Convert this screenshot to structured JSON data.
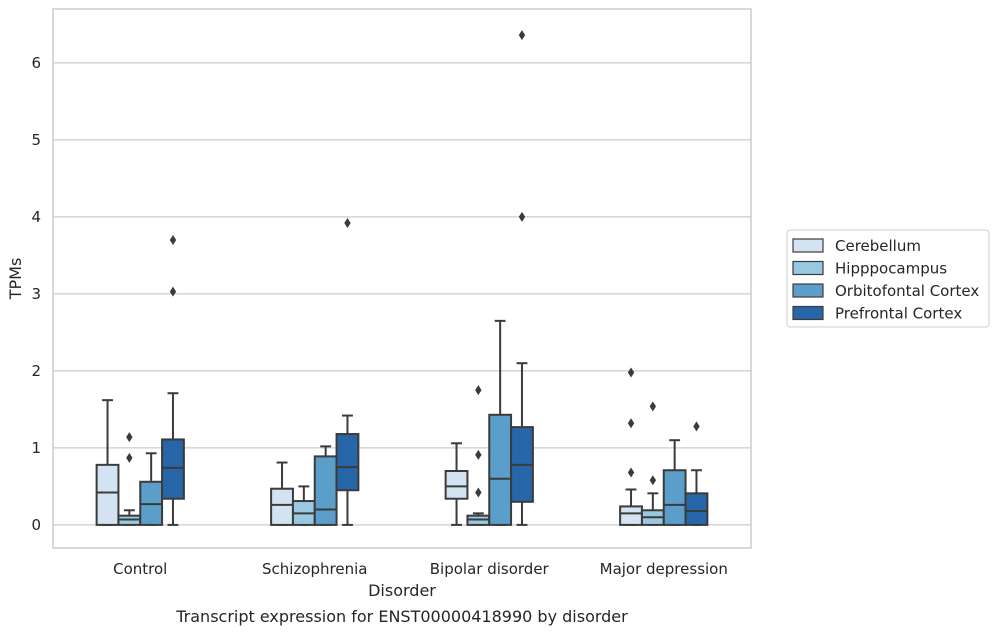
{
  "chart_data": {
    "type": "box",
    "title": "",
    "caption": "Transcript expression for ENST00000418990 by disorder",
    "xlabel": "Disorder",
    "ylabel": "TPMs",
    "ylim": [
      -0.3,
      6.7
    ],
    "yticks": [
      0,
      1,
      2,
      3,
      4,
      5,
      6
    ],
    "grid": "horizontal",
    "legend_position": "right",
    "categories": [
      "Control",
      "Schizophrenia",
      "Bipolar disorder",
      "Major depression"
    ],
    "series": [
      {
        "name": "Cerebellum",
        "color": "#d4e3f1",
        "boxes": [
          {
            "whislo": 0,
            "q1": 0,
            "med": 0.42,
            "q3": 0.78,
            "whishi": 1.62,
            "fliers": []
          },
          {
            "whislo": 0,
            "q1": 0,
            "med": 0.26,
            "q3": 0.47,
            "whishi": 0.81,
            "fliers": []
          },
          {
            "whislo": 0,
            "q1": 0.34,
            "med": 0.5,
            "q3": 0.7,
            "whishi": 1.06,
            "fliers": []
          },
          {
            "whislo": 0,
            "q1": 0,
            "med": 0.15,
            "q3": 0.24,
            "whishi": 0.46,
            "fliers": [
              0.68,
              1.32,
              1.98
            ]
          }
        ]
      },
      {
        "name": "Hipppocampus",
        "color": "#9ac8e0",
        "boxes": [
          {
            "whislo": 0,
            "q1": 0,
            "med": 0.07,
            "q3": 0.12,
            "whishi": 0.19,
            "fliers": [
              0.87,
              1.14
            ]
          },
          {
            "whislo": 0,
            "q1": 0,
            "med": 0.15,
            "q3": 0.31,
            "whishi": 0.5,
            "fliers": []
          },
          {
            "whislo": 0,
            "q1": 0,
            "med": 0.07,
            "q3": 0.12,
            "whishi": 0.15,
            "fliers": [
              0.42,
              0.91,
              1.75
            ]
          },
          {
            "whislo": 0,
            "q1": 0,
            "med": 0.1,
            "q3": 0.19,
            "whishi": 0.41,
            "fliers": [
              0.58,
              1.54
            ]
          }
        ]
      },
      {
        "name": "Orbitofontal Cortex",
        "color": "#5a9ec9",
        "boxes": [
          {
            "whislo": 0,
            "q1": 0,
            "med": 0.27,
            "q3": 0.56,
            "whishi": 0.93,
            "fliers": []
          },
          {
            "whislo": 0,
            "q1": 0,
            "med": 0.2,
            "q3": 0.89,
            "whishi": 1.02,
            "fliers": []
          },
          {
            "whislo": 0,
            "q1": 0,
            "med": 0.6,
            "q3": 1.43,
            "whishi": 2.65,
            "fliers": []
          },
          {
            "whislo": 0,
            "q1": 0,
            "med": 0.26,
            "q3": 0.71,
            "whishi": 1.1,
            "fliers": []
          }
        ]
      },
      {
        "name": "Prefrontal Cortex",
        "color": "#2766a8",
        "boxes": [
          {
            "whislo": 0,
            "q1": 0.34,
            "med": 0.74,
            "q3": 1.11,
            "whishi": 1.71,
            "fliers": [
              3.03,
              3.7
            ]
          },
          {
            "whislo": 0,
            "q1": 0.45,
            "med": 0.75,
            "q3": 1.18,
            "whishi": 1.42,
            "fliers": [
              3.92
            ]
          },
          {
            "whislo": 0,
            "q1": 0.3,
            "med": 0.78,
            "q3": 1.27,
            "whishi": 2.1,
            "fliers": [
              4.0,
              6.36
            ]
          },
          {
            "whislo": 0,
            "q1": 0,
            "med": 0.18,
            "q3": 0.41,
            "whishi": 0.71,
            "fliers": [
              1.28
            ]
          }
        ]
      }
    ]
  }
}
